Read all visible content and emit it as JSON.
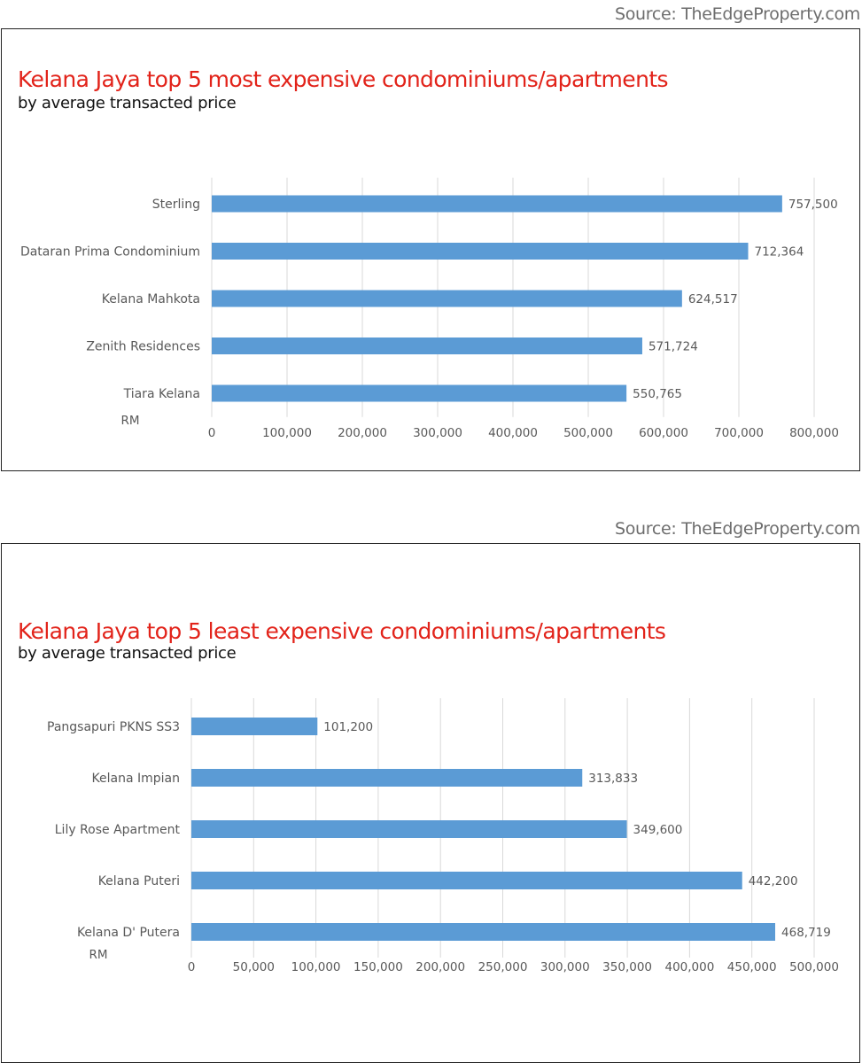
{
  "colors": {
    "bar": "#5b9bd5",
    "title": "#e2231a",
    "grid": "#d9d9d9",
    "label": "#595959"
  },
  "chart_data": [
    {
      "type": "bar",
      "orientation": "horizontal",
      "source": "Source: TheEdgeProperty.com",
      "title": "Kelana Jaya top 5 most expensive condominiums/apartments",
      "subtitle": "by average transacted price",
      "unit_label": "RM",
      "categories": [
        "Sterling",
        "Dataran Prima Condominium",
        "Kelana Mahkota",
        "Zenith Residences",
        "Tiara Kelana"
      ],
      "values": [
        757500,
        712364,
        624517,
        571724,
        550765
      ],
      "value_labels": [
        "757,500",
        "712,364",
        "624,517",
        "571,724",
        "550,765"
      ],
      "xlim": [
        0,
        800000
      ],
      "ticks": [
        0,
        100000,
        200000,
        300000,
        400000,
        500000,
        600000,
        700000,
        800000
      ],
      "tick_labels": [
        "0",
        "100,000",
        "200,000",
        "300,000",
        "400,000",
        "500,000",
        "600,000",
        "700,000",
        "800,000"
      ],
      "grid": true,
      "legend": "none"
    },
    {
      "type": "bar",
      "orientation": "horizontal",
      "source": "Source: TheEdgeProperty.com",
      "title": "Kelana Jaya top 5 least expensive condominiums/apartments",
      "subtitle": "by average transacted price",
      "unit_label": "RM",
      "categories": [
        "Pangsapuri PKNS SS3",
        "Kelana Impian",
        "Lily Rose Apartment",
        "Kelana Puteri",
        "Kelana D' Putera"
      ],
      "values": [
        101200,
        313833,
        349600,
        442200,
        468719
      ],
      "value_labels": [
        "101,200",
        "313,833",
        "349,600",
        "442,200",
        "468,719"
      ],
      "xlim": [
        0,
        500000
      ],
      "ticks": [
        0,
        50000,
        100000,
        150000,
        200000,
        250000,
        300000,
        350000,
        400000,
        450000,
        500000
      ],
      "tick_labels": [
        "0",
        "50,000",
        "100,000",
        "150,000",
        "200,000",
        "250,000",
        "300,000",
        "350,000",
        "400,000",
        "450,000",
        "500,000"
      ],
      "grid": true,
      "legend": "none"
    }
  ]
}
